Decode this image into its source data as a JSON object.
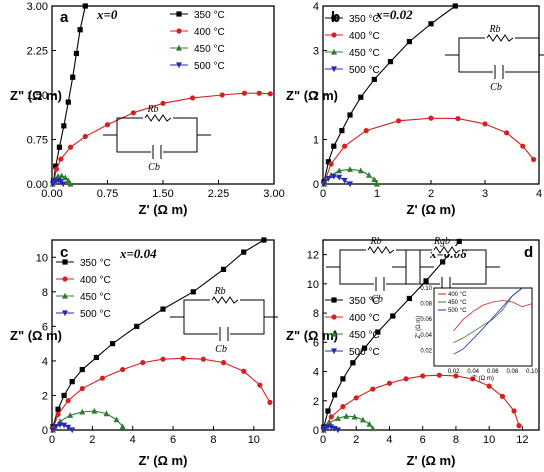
{
  "chart_data": [
    {
      "panel": "a",
      "type": "line",
      "composition_label": "x=0",
      "xlabel": "Z' (Ω m)",
      "ylabel": "Z\" (Ω m)",
      "xlim": [
        0,
        3.0
      ],
      "ylim": [
        0,
        3.0
      ],
      "xticks": [
        "0.00",
        "0.75",
        "1.50",
        "2.25",
        "3.00"
      ],
      "yticks": [
        "0.00",
        "0.75",
        "1.50",
        "2.25",
        "3.00"
      ],
      "legend_position": "top-right",
      "circuit": {
        "r_label": "Rb",
        "c_label": "Cb"
      },
      "series": [
        {
          "name": "350 °C",
          "color": "#000000",
          "marker": "square",
          "x": [
            0.02,
            0.05,
            0.1,
            0.16,
            0.22,
            0.28,
            0.33,
            0.38,
            0.45
          ],
          "y": [
            0.05,
            0.3,
            0.62,
            0.98,
            1.38,
            1.8,
            2.2,
            2.6,
            3.0
          ]
        },
        {
          "name": "400 °C",
          "color": "#d62020",
          "marker": "circle",
          "x": [
            0.02,
            0.06,
            0.12,
            0.25,
            0.45,
            0.75,
            1.1,
            1.5,
            1.9,
            2.3,
            2.6,
            2.8,
            2.95
          ],
          "y": [
            0.02,
            0.25,
            0.42,
            0.62,
            0.8,
            1.0,
            1.2,
            1.36,
            1.45,
            1.5,
            1.53,
            1.53,
            1.52
          ]
        },
        {
          "name": "450 °C",
          "color": "#2f7d2f",
          "marker": "triangle-up",
          "x": [
            0.01,
            0.04,
            0.08,
            0.13,
            0.18,
            0.22,
            0.25
          ],
          "y": [
            0.0,
            0.09,
            0.13,
            0.14,
            0.11,
            0.06,
            0.0
          ]
        },
        {
          "name": "500 °C",
          "color": "#2a2ab0",
          "marker": "triangle-down",
          "x": [
            0.01,
            0.03,
            0.06,
            0.09,
            0.12,
            0.15
          ],
          "y": [
            0.0,
            0.04,
            0.06,
            0.06,
            0.04,
            0.0
          ]
        }
      ]
    },
    {
      "panel": "b",
      "type": "line",
      "composition_label": "x=0.02",
      "xlabel": "Z' (Ω m)",
      "ylabel": "Z\" (Ω m)",
      "xlim": [
        0,
        4
      ],
      "ylim": [
        0,
        4
      ],
      "xticks": [
        "0",
        "1",
        "2",
        "3",
        "4"
      ],
      "yticks": [
        "0",
        "1",
        "2",
        "3",
        "4"
      ],
      "legend_position": "top-left",
      "circuit": {
        "r_label": "Rb",
        "c_label": "Cb"
      },
      "series": [
        {
          "name": "350 °C",
          "color": "#000000",
          "marker": "square",
          "x": [
            0.02,
            0.1,
            0.2,
            0.35,
            0.5,
            0.7,
            0.95,
            1.25,
            1.6,
            2.0,
            2.45
          ],
          "y": [
            0.05,
            0.5,
            0.85,
            1.2,
            1.55,
            1.95,
            2.35,
            2.75,
            3.2,
            3.6,
            4.0
          ]
        },
        {
          "name": "400 °C",
          "color": "#d62020",
          "marker": "circle",
          "x": [
            0.02,
            0.15,
            0.4,
            0.8,
            1.4,
            2.0,
            2.5,
            3.0,
            3.4,
            3.7,
            3.9
          ],
          "y": [
            0.02,
            0.45,
            0.85,
            1.2,
            1.42,
            1.48,
            1.47,
            1.35,
            1.15,
            0.85,
            0.55
          ]
        },
        {
          "name": "450 °C",
          "color": "#2f7d2f",
          "marker": "triangle-up",
          "x": [
            0.02,
            0.15,
            0.3,
            0.5,
            0.7,
            0.85,
            0.95,
            1.0
          ],
          "y": [
            0.0,
            0.2,
            0.3,
            0.33,
            0.3,
            0.2,
            0.1,
            0.0
          ]
        },
        {
          "name": "500 °C",
          "color": "#2a2ab0",
          "marker": "triangle-down",
          "x": [
            0.01,
            0.1,
            0.2,
            0.3,
            0.4,
            0.5
          ],
          "y": [
            0.0,
            0.12,
            0.17,
            0.15,
            0.08,
            0.0
          ]
        }
      ]
    },
    {
      "panel": "c",
      "type": "line",
      "composition_label": "x=0.04",
      "xlabel": "Z' (Ω m)",
      "ylabel": "Z\" (Ω m)",
      "xlim": [
        0,
        11
      ],
      "ylim": [
        0,
        11
      ],
      "xticks": [
        "0",
        "2",
        "4",
        "6",
        "8",
        "10"
      ],
      "yticks": [
        "0",
        "2",
        "4",
        "6",
        "8",
        "10"
      ],
      "legend_position": "top-left",
      "circuit": {
        "r_label": "Rb",
        "c_label": "Cb"
      },
      "series": [
        {
          "name": "350 °C",
          "color": "#000000",
          "marker": "square",
          "x": [
            0.05,
            0.3,
            0.6,
            1.0,
            1.5,
            2.2,
            3.0,
            4.2,
            5.5,
            7.0,
            8.5,
            9.5,
            10.5
          ],
          "y": [
            0.2,
            1.2,
            2.0,
            2.8,
            3.5,
            4.2,
            5.0,
            6.0,
            7.0,
            8.0,
            9.3,
            10.3,
            11.0
          ]
        },
        {
          "name": "400 °C",
          "color": "#d62020",
          "marker": "circle",
          "x": [
            0.05,
            0.3,
            0.8,
            1.5,
            2.5,
            3.5,
            4.5,
            5.5,
            6.5,
            7.5,
            8.5,
            9.5,
            10.3,
            10.8
          ],
          "y": [
            0.1,
            0.9,
            1.7,
            2.4,
            3.0,
            3.5,
            3.9,
            4.1,
            4.15,
            4.1,
            3.9,
            3.4,
            2.6,
            1.6
          ]
        },
        {
          "name": "450 °C",
          "color": "#2f7d2f",
          "marker": "triangle-up",
          "x": [
            0.05,
            0.4,
            0.9,
            1.5,
            2.1,
            2.7,
            3.2,
            3.5
          ],
          "y": [
            0.0,
            0.5,
            0.85,
            1.05,
            1.1,
            0.95,
            0.6,
            0.2
          ]
        },
        {
          "name": "500 °C",
          "color": "#2a2ab0",
          "marker": "triangle-down",
          "x": [
            0.02,
            0.2,
            0.4,
            0.6,
            0.8,
            1.0
          ],
          "y": [
            0.0,
            0.2,
            0.3,
            0.28,
            0.15,
            0.0
          ]
        }
      ]
    },
    {
      "panel": "d",
      "type": "line",
      "composition_label": "x=0.06",
      "xlabel": "Z' (Ω m)",
      "ylabel": "Z\" (Ω m)",
      "xlim": [
        0,
        13
      ],
      "ylim": [
        0,
        13
      ],
      "xticks": [
        "0",
        "2",
        "4",
        "6",
        "8",
        "10",
        "12"
      ],
      "yticks": [
        "0",
        "2",
        "4",
        "6",
        "8",
        "10",
        "12"
      ],
      "legend_position": "top-left",
      "circuit": {
        "r1_label": "Rb",
        "c1_label": "Cb",
        "r2_label": "Rgb",
        "c2_label": "Cgb"
      },
      "series": [
        {
          "name": "350 °C",
          "color": "#000000",
          "marker": "square",
          "x": [
            0.05,
            0.3,
            0.7,
            1.2,
            1.8,
            2.5,
            3.3,
            4.2,
            5.2,
            6.2,
            7.2,
            8.2
          ],
          "y": [
            0.2,
            1.3,
            2.4,
            3.5,
            4.6,
            5.6,
            6.7,
            7.8,
            9.0,
            10.2,
            11.5,
            12.9
          ]
        },
        {
          "name": "400 °C",
          "color": "#d62020",
          "marker": "circle",
          "x": [
            0.05,
            0.5,
            1.2,
            2.0,
            3.0,
            4.0,
            5.0,
            6.0,
            7.0,
            8.0,
            9.0,
            10.0,
            10.8,
            11.5,
            11.8
          ],
          "y": [
            0.1,
            0.9,
            1.6,
            2.2,
            2.8,
            3.2,
            3.5,
            3.7,
            3.75,
            3.7,
            3.5,
            3.0,
            2.3,
            1.3,
            0.3
          ]
        },
        {
          "name": "450 °C",
          "color": "#2f7d2f",
          "marker": "triangle-up",
          "x": [
            0.05,
            0.4,
            0.9,
            1.4,
            1.9,
            2.4,
            2.8,
            3.0
          ],
          "y": [
            0.0,
            0.5,
            0.8,
            0.95,
            0.9,
            0.7,
            0.4,
            0.1
          ]
        },
        {
          "name": "500 °C",
          "color": "#2a2ab0",
          "marker": "triangle-down",
          "x": [
            0.02,
            0.15,
            0.3,
            0.5,
            0.7,
            0.9
          ],
          "y": [
            0.0,
            0.15,
            0.22,
            0.2,
            0.1,
            0.0
          ]
        }
      ],
      "inset": {
        "type": "line",
        "xlabel": "Z' (Ω m)",
        "ylabel": "Z\" (Ω m)",
        "xlim": [
          0.0,
          0.1
        ],
        "ylim": [
          0.0,
          0.1
        ],
        "xticks": [
          "0.02",
          "0.04",
          "0.06",
          "0.08",
          "0.10"
        ],
        "yticks": [
          "0.02",
          "0.04",
          "0.06",
          "0.08",
          "0.10"
        ],
        "series": [
          {
            "name": "400 °C",
            "color": "#d62020",
            "x": [
              0.02,
              0.03,
              0.04,
              0.05,
              0.06,
              0.07,
              0.08,
              0.09,
              0.1
            ],
            "y": [
              0.045,
              0.06,
              0.07,
              0.078,
              0.082,
              0.084,
              0.082,
              0.076,
              0.08
            ]
          },
          {
            "name": "450 °C",
            "color": "#2f7d2f",
            "x": [
              0.02,
              0.03,
              0.04,
              0.05,
              0.06,
              0.07,
              0.08,
              0.09
            ],
            "y": [
              0.03,
              0.036,
              0.044,
              0.052,
              0.06,
              0.072,
              0.09,
              0.1
            ]
          },
          {
            "name": "500 °C",
            "color": "#2a2ab0",
            "x": [
              0.02,
              0.03,
              0.04,
              0.05,
              0.06,
              0.07,
              0.08,
              0.09
            ],
            "y": [
              0.015,
              0.022,
              0.035,
              0.048,
              0.062,
              0.076,
              0.09,
              0.1
            ]
          }
        ]
      }
    }
  ]
}
